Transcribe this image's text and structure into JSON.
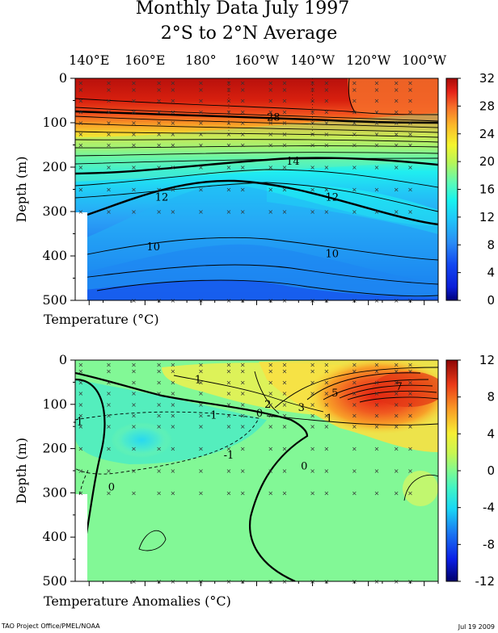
{
  "title": "Monthly Data July 1997",
  "subtitle": "2°S to 2°N Average",
  "footer_left": "TAO Project Office/PMEL/NOAA",
  "footer_right": "Jul 19 2009",
  "chart_data": [
    {
      "type": "heatmap",
      "xlabel": "",
      "ylabel": "Depth (m)",
      "caption": "Temperature (°C)",
      "x_ticks": [
        "140°E",
        "160°E",
        "180°",
        "160°W",
        "140°W",
        "120°W",
        "100°W"
      ],
      "x_tick_lon": [
        140,
        160,
        180,
        200,
        220,
        240,
        260
      ],
      "xlim_lon": [
        135,
        265
      ],
      "y_ticks": [
        0,
        100,
        200,
        300,
        400,
        500
      ],
      "ylim": [
        0,
        500
      ],
      "colorbar": {
        "min": 0,
        "max": 32,
        "ticks": [
          0,
          4,
          8,
          12,
          16,
          20,
          24,
          28,
          32
        ]
      },
      "grid": false,
      "contour_labels": [
        {
          "value": "28",
          "lon": 206,
          "depth": 88
        },
        {
          "value": "14",
          "lon": 213,
          "depth": 187
        },
        {
          "value": "12",
          "lon": 166,
          "depth": 268
        },
        {
          "value": "12",
          "lon": 227,
          "depth": 268
        },
        {
          "value": "10",
          "lon": 163,
          "depth": 380
        },
        {
          "value": "10",
          "lon": 227,
          "depth": 395
        }
      ]
    },
    {
      "type": "heatmap",
      "xlabel": "",
      "ylabel": "Depth (m)",
      "caption": "Temperature Anomalies (°C)",
      "y_ticks": [
        0,
        100,
        200,
        300,
        400,
        500
      ],
      "ylim": [
        0,
        500
      ],
      "colorbar": {
        "min": -12,
        "max": 12,
        "ticks": [
          -12,
          -8,
          -4,
          0,
          4,
          8,
          12
        ]
      },
      "grid": false,
      "contour_labels": [
        {
          "value": "1",
          "lon": 179,
          "depth": 45
        },
        {
          "value": "-1",
          "lon": 184,
          "depth": 125
        },
        {
          "value": "0",
          "lon": 201,
          "depth": 120
        },
        {
          "value": "-1",
          "lon": 190,
          "depth": 215
        },
        {
          "value": "3",
          "lon": 216,
          "depth": 108
        },
        {
          "value": "5",
          "lon": 228,
          "depth": 75
        },
        {
          "value": "7",
          "lon": 251,
          "depth": 60
        },
        {
          "value": "2",
          "lon": 204,
          "depth": 100
        },
        {
          "value": "1",
          "lon": 226,
          "depth": 132
        },
        {
          "value": "0",
          "lon": 148,
          "depth": 287
        },
        {
          "value": "0",
          "lon": 217,
          "depth": 240
        },
        {
          "value": "-1",
          "lon": 136,
          "depth": 140
        }
      ]
    }
  ]
}
